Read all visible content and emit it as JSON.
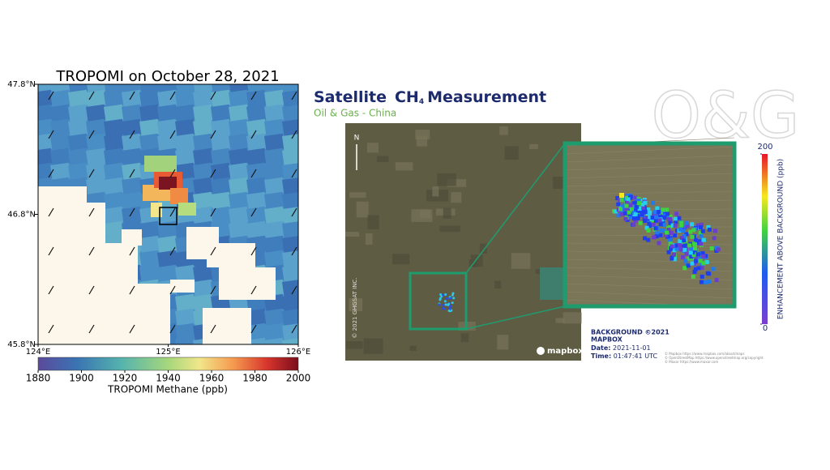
{
  "tropomi": {
    "title": "TROPOMI on October 28, 2021",
    "lat_range": [
      45.8,
      47.8
    ],
    "lat_ticks": [
      {
        "value": 45.8,
        "label": "45.8°N"
      },
      {
        "value": 46.8,
        "label": "46.8°N"
      },
      {
        "value": 47.8,
        "label": "47.8°N"
      }
    ],
    "lon_range": [
      124,
      126
    ],
    "lon_ticks": [
      {
        "value": 124,
        "label": "124°E"
      },
      {
        "value": 125,
        "label": "125°E"
      },
      {
        "value": 126,
        "label": "126°E"
      }
    ],
    "colorbar": {
      "label": "TROPOMI Methane (ppb)",
      "range": [
        1880,
        2000
      ],
      "ticks": [
        1880,
        1900,
        1920,
        1940,
        1960,
        1980,
        2000
      ]
    }
  },
  "ghgsat": {
    "title": {
      "prefix": "Satellite",
      "species": "CH",
      "subscript": "4",
      "suffix": "Measurement"
    },
    "subtitle": "Oil & Gas - China",
    "watermark": "O&G",
    "north": "N",
    "copyright": "© 2021 GHGSAT INC.",
    "logo": "mapbox",
    "background": [
      "BACKGROUND ©2021",
      "MAPBOX"
    ],
    "date_label": "Date:",
    "date": "2021-11-01",
    "time_label": "Time:",
    "time": "01:47:41 UTC",
    "credits": [
      "© Mapbox https://www.mapbox.com/about/maps",
      "© OpenStreetMap https://www.openstreetmap.org/copyright",
      "© Maxar https://www.maxar.com"
    ],
    "colorbar": {
      "label": "ENHANCEMENT ABOVE BACKGROUND (ppb)",
      "range": [
        0,
        200
      ],
      "ticks": [
        0,
        200
      ]
    }
  }
}
